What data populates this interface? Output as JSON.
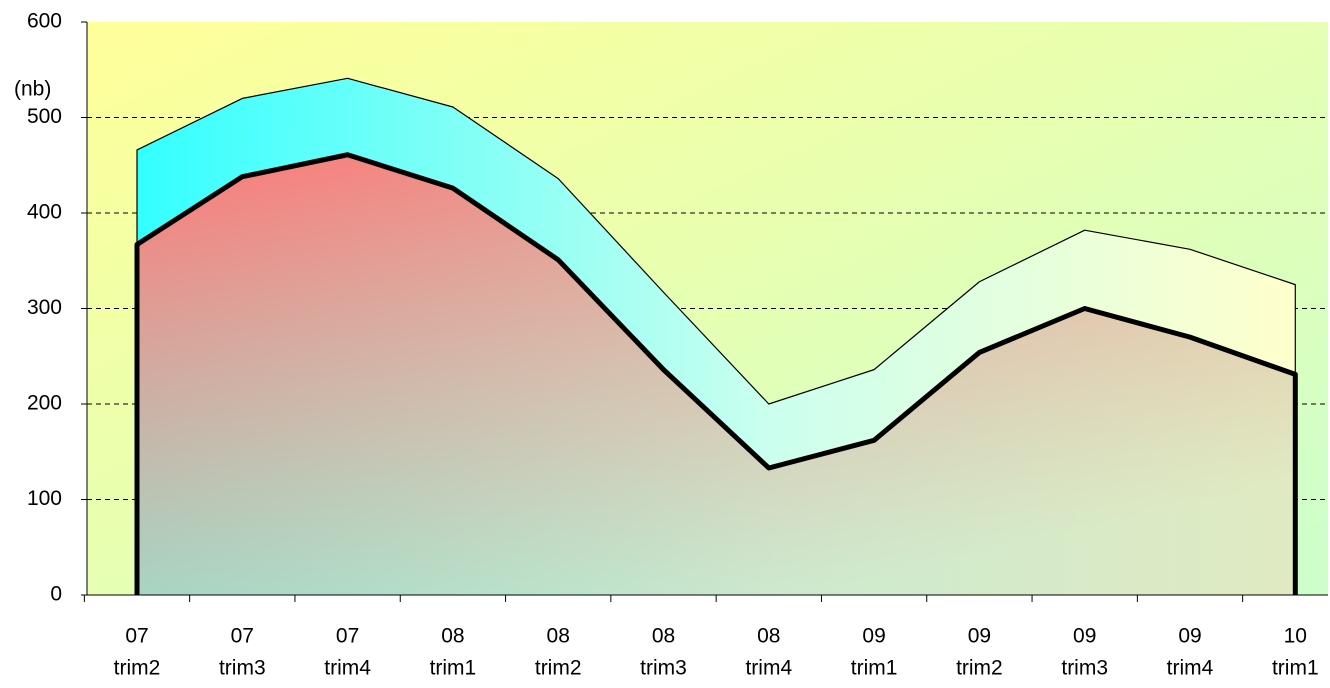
{
  "chart_data": {
    "type": "area",
    "y_label": "(nb)",
    "categories": [
      [
        "07",
        "trim2"
      ],
      [
        "07",
        "trim3"
      ],
      [
        "07",
        "trim4"
      ],
      [
        "08",
        "trim1"
      ],
      [
        "08",
        "trim2"
      ],
      [
        "08",
        "trim3"
      ],
      [
        "08",
        "trim4"
      ],
      [
        "09",
        "trim1"
      ],
      [
        "09",
        "trim2"
      ],
      [
        "09",
        "trim3"
      ],
      [
        "09",
        "trim4"
      ],
      [
        "10",
        "trim1"
      ]
    ],
    "series": [
      {
        "values": [
          466,
          520,
          541,
          511,
          436,
          317,
          200,
          236,
          328,
          382,
          362,
          325
        ]
      },
      {
        "values": [
          367,
          438,
          461,
          426,
          351,
          236,
          133,
          162,
          254,
          300,
          270,
          231
        ]
      }
    ],
    "ylim": [
      0,
      600
    ],
    "yticks": [
      0,
      100,
      200,
      300,
      400,
      500,
      600
    ],
    "grid": true
  }
}
